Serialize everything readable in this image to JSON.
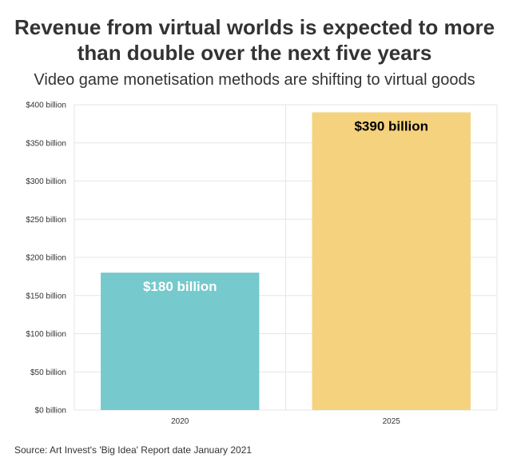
{
  "chart_data": {
    "type": "bar",
    "title": "Revenue from virtual worlds is expected to more than double over the next five years",
    "subtitle": "Video game monetisation methods are shifting to virtual goods",
    "categories": [
      "2020",
      "2025"
    ],
    "values": [
      180,
      390
    ],
    "data_labels": [
      "$180 billion",
      "$390 billion"
    ],
    "y_ticks": [
      0,
      50,
      100,
      150,
      200,
      250,
      300,
      350,
      400
    ],
    "y_tick_labels": [
      "$0 billion",
      "$50 billion",
      "$100 billion",
      "$150 billion",
      "$200 billion",
      "$250 billion",
      "$300 billion",
      "$350 billion",
      "$400 billion"
    ],
    "ylim": [
      0,
      400
    ],
    "grid": true,
    "legend": "none",
    "colors": {
      "bars": [
        "#76c9cc",
        "#f5d27e"
      ],
      "labels": [
        "#ffffff",
        "#000000"
      ],
      "grid": "#e6e6e6",
      "axis_text": "#333333"
    }
  },
  "source": "Source: Art Invest's 'Big Idea' Report date January 2021"
}
